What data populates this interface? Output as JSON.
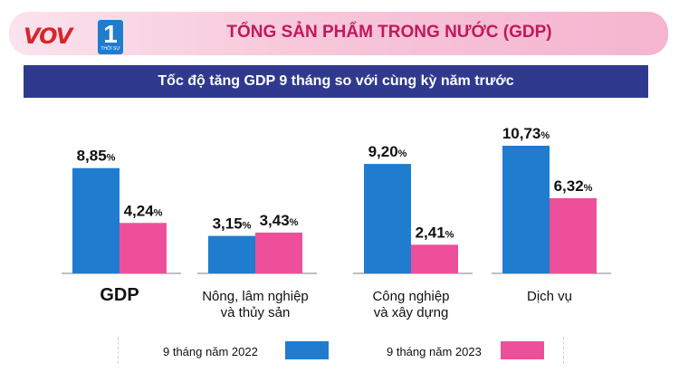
{
  "header": {
    "logo_text": "VOV",
    "logo_number": "1",
    "logo_sub": "THỜI SỰ",
    "title": "TỔNG SẢN PHẨM TRONG NƯỚC (GDP)",
    "subtitle": "Tốc độ tăng GDP 9 tháng so với cùng kỳ năm trước"
  },
  "colors": {
    "series_2022": "#1f7ccf",
    "series_2023": "#ee4f9a",
    "header_title": "#c2185b",
    "subtitle_bar": "#2f3a8f"
  },
  "chart_data": {
    "type": "bar",
    "categories": [
      [
        "GDP"
      ],
      [
        "Nông, lâm nghiệp",
        "và thủy sản"
      ],
      [
        "Công nghiệp",
        "và xây dựng"
      ],
      [
        "Dịch vụ"
      ]
    ],
    "series": [
      {
        "name": "9 tháng năm 2022",
        "values": [
          8.85,
          3.15,
          9.2,
          10.73
        ],
        "labels": [
          "8,85",
          "3,15",
          "9,20",
          "10,73"
        ],
        "color": "#1f7ccf"
      },
      {
        "name": "9 tháng năm 2023",
        "values": [
          4.24,
          3.43,
          2.41,
          6.32
        ],
        "labels": [
          "4,24",
          "3,43",
          "2,41",
          "6,32"
        ],
        "color": "#ee4f9a"
      }
    ],
    "unit": "%",
    "ylim": [
      0,
      12
    ],
    "grid": false,
    "legend_position": "bottom"
  }
}
